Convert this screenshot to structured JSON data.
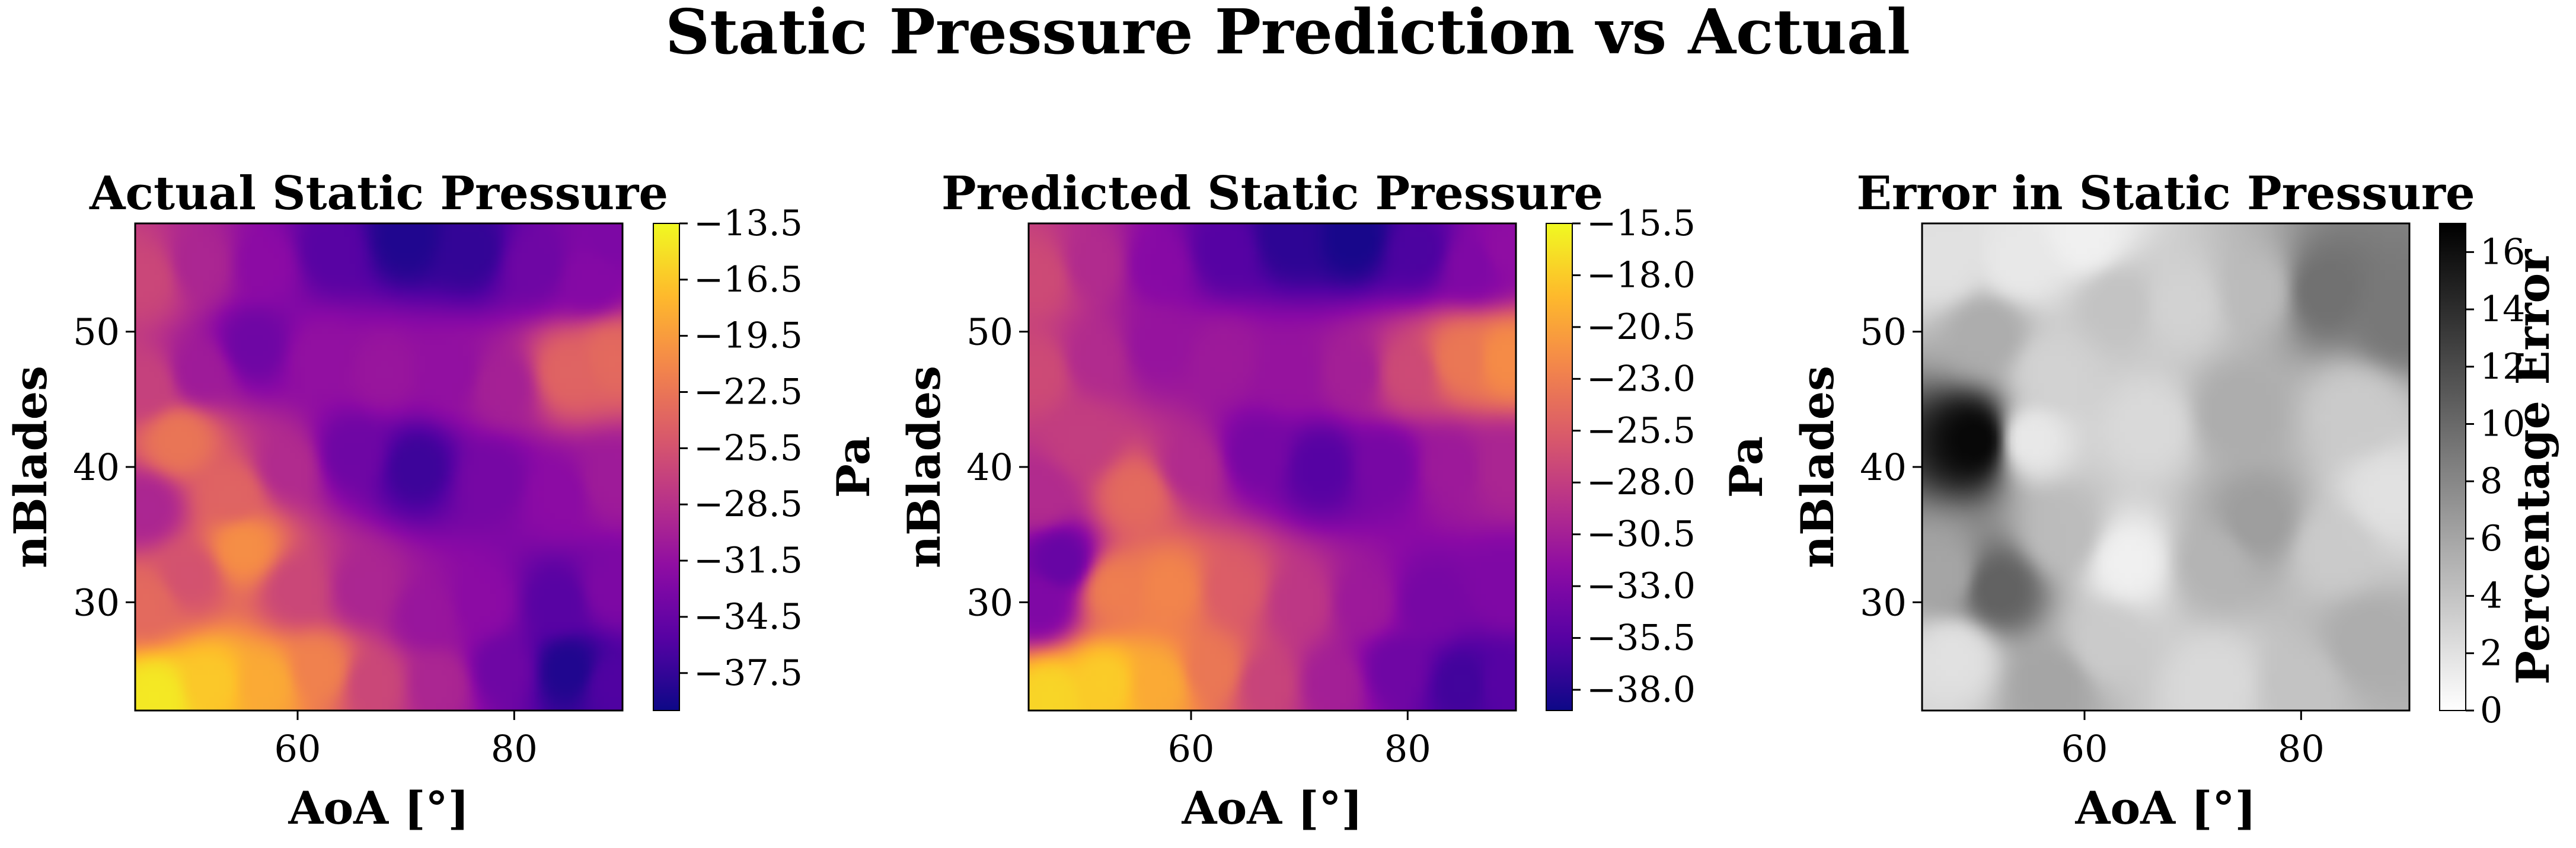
{
  "title": "Static Pressure Prediction vs Actual",
  "chart_data": [
    {
      "type": "heatmap",
      "title": "Actual Static Pressure",
      "xlabel": "AoA [°]",
      "ylabel": "nBlades",
      "xlim": [
        45,
        90
      ],
      "ylim": [
        22,
        58
      ],
      "xticks": [
        60,
        80
      ],
      "yticks": [
        30,
        40,
        50
      ],
      "colorbar": {
        "label": "Pa",
        "colormap": "plasma",
        "range": [
          -39.5,
          -13.5
        ],
        "ticks": [
          -13.5,
          -16.5,
          -19.5,
          -22.5,
          -25.5,
          -28.5,
          -31.5,
          -34.5,
          -37.5
        ],
        "tick_labels": [
          "−13.5",
          "−16.5",
          "−19.5",
          "−22.5",
          "−25.5",
          "−28.5",
          "−31.5",
          "−34.5",
          "−37.5"
        ]
      },
      "points": [
        {
          "x": 47,
          "y": 23,
          "v": -14.5
        },
        {
          "x": 52,
          "y": 24,
          "v": -16.5
        },
        {
          "x": 57,
          "y": 24,
          "v": -18.5
        },
        {
          "x": 62,
          "y": 25,
          "v": -21.5
        },
        {
          "x": 67,
          "y": 24,
          "v": -26.5
        },
        {
          "x": 73,
          "y": 24,
          "v": -29.5
        },
        {
          "x": 79,
          "y": 25,
          "v": -34.0
        },
        {
          "x": 85,
          "y": 25,
          "v": -38.5
        },
        {
          "x": 89,
          "y": 24,
          "v": -36.0
        },
        {
          "x": 46,
          "y": 30,
          "v": -23.5
        },
        {
          "x": 50,
          "y": 32,
          "v": -25.5
        },
        {
          "x": 55,
          "y": 34,
          "v": -20.5
        },
        {
          "x": 60,
          "y": 31,
          "v": -26.5
        },
        {
          "x": 66,
          "y": 31,
          "v": -29.5
        },
        {
          "x": 72,
          "y": 29,
          "v": -31.0
        },
        {
          "x": 77,
          "y": 30,
          "v": -32.0
        },
        {
          "x": 84,
          "y": 30,
          "v": -35.5
        },
        {
          "x": 89,
          "y": 31,
          "v": -33.0
        },
        {
          "x": 46,
          "y": 37,
          "v": -29.5
        },
        {
          "x": 49,
          "y": 42,
          "v": -22.5
        },
        {
          "x": 54,
          "y": 38,
          "v": -24.0
        },
        {
          "x": 59,
          "y": 40,
          "v": -29.0
        },
        {
          "x": 65,
          "y": 41,
          "v": -34.0
        },
        {
          "x": 71,
          "y": 40,
          "v": -37.0
        },
        {
          "x": 78,
          "y": 39,
          "v": -33.5
        },
        {
          "x": 84,
          "y": 38,
          "v": -32.0
        },
        {
          "x": 89,
          "y": 39,
          "v": -30.5
        },
        {
          "x": 46,
          "y": 46,
          "v": -27.0
        },
        {
          "x": 51,
          "y": 47,
          "v": -30.5
        },
        {
          "x": 56,
          "y": 49,
          "v": -34.0
        },
        {
          "x": 62,
          "y": 48,
          "v": -31.5
        },
        {
          "x": 68,
          "y": 47,
          "v": -31.0
        },
        {
          "x": 74,
          "y": 47,
          "v": -31.5
        },
        {
          "x": 79,
          "y": 46,
          "v": -30.0
        },
        {
          "x": 85,
          "y": 47,
          "v": -24.0
        },
        {
          "x": 89,
          "y": 48,
          "v": -23.5
        },
        {
          "x": 46,
          "y": 54,
          "v": -26.5
        },
        {
          "x": 51,
          "y": 55,
          "v": -29.5
        },
        {
          "x": 57,
          "y": 55,
          "v": -32.0
        },
        {
          "x": 63,
          "y": 56,
          "v": -35.5
        },
        {
          "x": 70,
          "y": 57,
          "v": -38.5
        },
        {
          "x": 76,
          "y": 56,
          "v": -37.5
        },
        {
          "x": 82,
          "y": 55,
          "v": -34.0
        },
        {
          "x": 87,
          "y": 54,
          "v": -32.5
        },
        {
          "x": 89,
          "y": 57,
          "v": -33.0
        }
      ]
    },
    {
      "type": "heatmap",
      "title": "Predicted Static Pressure",
      "xlabel": "AoA [°]",
      "ylabel": "nBlades",
      "xlim": [
        45,
        90
      ],
      "ylim": [
        22,
        58
      ],
      "xticks": [
        60,
        80
      ],
      "yticks": [
        30,
        40,
        50
      ],
      "colorbar": {
        "label": "Pa",
        "colormap": "plasma",
        "range": [
          -39.0,
          -15.5
        ],
        "ticks": [
          -15.5,
          -18.0,
          -20.5,
          -23.0,
          -25.5,
          -28.0,
          -30.5,
          -33.0,
          -35.5,
          -38.0
        ],
        "tick_labels": [
          "−15.5",
          "−18.0",
          "−20.5",
          "−23.0",
          "−25.5",
          "−28.0",
          "−30.5",
          "−33.0",
          "−35.5",
          "−38.0"
        ]
      },
      "points": [
        {
          "x": 47,
          "y": 23,
          "v": -17.5
        },
        {
          "x": 52,
          "y": 24,
          "v": -18.0
        },
        {
          "x": 57,
          "y": 24,
          "v": -20.0
        },
        {
          "x": 62,
          "y": 25,
          "v": -23.5
        },
        {
          "x": 67,
          "y": 24,
          "v": -27.5
        },
        {
          "x": 73,
          "y": 24,
          "v": -30.5
        },
        {
          "x": 79,
          "y": 25,
          "v": -34.0
        },
        {
          "x": 85,
          "y": 24,
          "v": -36.5
        },
        {
          "x": 89,
          "y": 24,
          "v": -35.5
        },
        {
          "x": 46,
          "y": 30,
          "v": -33.0
        },
        {
          "x": 48,
          "y": 33,
          "v": -34.5
        },
        {
          "x": 53,
          "y": 31,
          "v": -23.0
        },
        {
          "x": 58,
          "y": 31,
          "v": -22.5
        },
        {
          "x": 64,
          "y": 31,
          "v": -25.5
        },
        {
          "x": 70,
          "y": 30,
          "v": -28.5
        },
        {
          "x": 76,
          "y": 30,
          "v": -31.0
        },
        {
          "x": 82,
          "y": 30,
          "v": -33.5
        },
        {
          "x": 89,
          "y": 31,
          "v": -33.0
        },
        {
          "x": 46,
          "y": 38,
          "v": -29.5
        },
        {
          "x": 50,
          "y": 42,
          "v": -28.0
        },
        {
          "x": 55,
          "y": 38,
          "v": -24.5
        },
        {
          "x": 60,
          "y": 40,
          "v": -29.5
        },
        {
          "x": 66,
          "y": 41,
          "v": -33.5
        },
        {
          "x": 72,
          "y": 40,
          "v": -35.5
        },
        {
          "x": 78,
          "y": 40,
          "v": -33.5
        },
        {
          "x": 84,
          "y": 40,
          "v": -31.0
        },
        {
          "x": 89,
          "y": 40,
          "v": -30.0
        },
        {
          "x": 46,
          "y": 47,
          "v": -27.0
        },
        {
          "x": 51,
          "y": 48,
          "v": -29.5
        },
        {
          "x": 57,
          "y": 49,
          "v": -31.5
        },
        {
          "x": 63,
          "y": 48,
          "v": -31.0
        },
        {
          "x": 69,
          "y": 47,
          "v": -31.5
        },
        {
          "x": 75,
          "y": 47,
          "v": -30.5
        },
        {
          "x": 80,
          "y": 47,
          "v": -27.0
        },
        {
          "x": 85,
          "y": 48,
          "v": -23.5
        },
        {
          "x": 89,
          "y": 48,
          "v": -22.0
        },
        {
          "x": 46,
          "y": 54,
          "v": -27.0
        },
        {
          "x": 51,
          "y": 55,
          "v": -29.5
        },
        {
          "x": 57,
          "y": 55,
          "v": -32.5
        },
        {
          "x": 63,
          "y": 56,
          "v": -35.5
        },
        {
          "x": 69,
          "y": 57,
          "v": -37.5
        },
        {
          "x": 75,
          "y": 57,
          "v": -38.5
        },
        {
          "x": 81,
          "y": 56,
          "v": -36.0
        },
        {
          "x": 86,
          "y": 55,
          "v": -33.0
        },
        {
          "x": 89,
          "y": 56,
          "v": -32.0
        }
      ]
    },
    {
      "type": "heatmap",
      "title": "Error in Static Pressure",
      "xlabel": "AoA [°]",
      "ylabel": "nBlades",
      "xlim": [
        45,
        90
      ],
      "ylim": [
        22,
        58
      ],
      "xticks": [
        60,
        80
      ],
      "yticks": [
        30,
        40,
        50
      ],
      "colorbar": {
        "label": "Percentage Error",
        "colormap": "gray_r",
        "range": [
          0,
          17
        ],
        "ticks": [
          0,
          2,
          4,
          6,
          8,
          10,
          12,
          14,
          16
        ],
        "tick_labels": [
          "0",
          "2",
          "4",
          "6",
          "8",
          "10",
          "12",
          "14",
          "16"
        ]
      },
      "points": [
        {
          "x": 50,
          "y": 42,
          "v": 16.5
        },
        {
          "x": 52,
          "y": 31,
          "v": 10.5
        },
        {
          "x": 47,
          "y": 32,
          "v": 6.0
        },
        {
          "x": 51,
          "y": 50,
          "v": 5.5
        },
        {
          "x": 58,
          "y": 35,
          "v": 4.5
        },
        {
          "x": 57,
          "y": 24,
          "v": 6.0
        },
        {
          "x": 62,
          "y": 27,
          "v": 3.5
        },
        {
          "x": 72,
          "y": 33,
          "v": 5.0
        },
        {
          "x": 76,
          "y": 36,
          "v": 6.5
        },
        {
          "x": 83,
          "y": 34,
          "v": 3.5
        },
        {
          "x": 82,
          "y": 53,
          "v": 9.5
        },
        {
          "x": 89,
          "y": 51,
          "v": 9.0
        },
        {
          "x": 76,
          "y": 53,
          "v": 4.5
        },
        {
          "x": 69,
          "y": 52,
          "v": 3.0
        },
        {
          "x": 63,
          "y": 52,
          "v": 4.0
        },
        {
          "x": 57,
          "y": 47,
          "v": 3.0
        },
        {
          "x": 66,
          "y": 43,
          "v": 2.5
        },
        {
          "x": 74,
          "y": 44,
          "v": 5.5
        },
        {
          "x": 85,
          "y": 44,
          "v": 3.5
        },
        {
          "x": 86,
          "y": 27,
          "v": 5.5
        },
        {
          "x": 80,
          "y": 24,
          "v": 4.0
        },
        {
          "x": 72,
          "y": 24,
          "v": 2.5
        },
        {
          "x": 64,
          "y": 33,
          "v": 1.0
        },
        {
          "x": 55,
          "y": 42,
          "v": 1.5
        },
        {
          "x": 48,
          "y": 26,
          "v": 2.0
        },
        {
          "x": 60,
          "y": 57,
          "v": 1.0
        },
        {
          "x": 88,
          "y": 38,
          "v": 2.0
        },
        {
          "x": 54,
          "y": 55,
          "v": 1.5
        },
        {
          "x": 47,
          "y": 55,
          "v": 2.0
        }
      ]
    }
  ]
}
